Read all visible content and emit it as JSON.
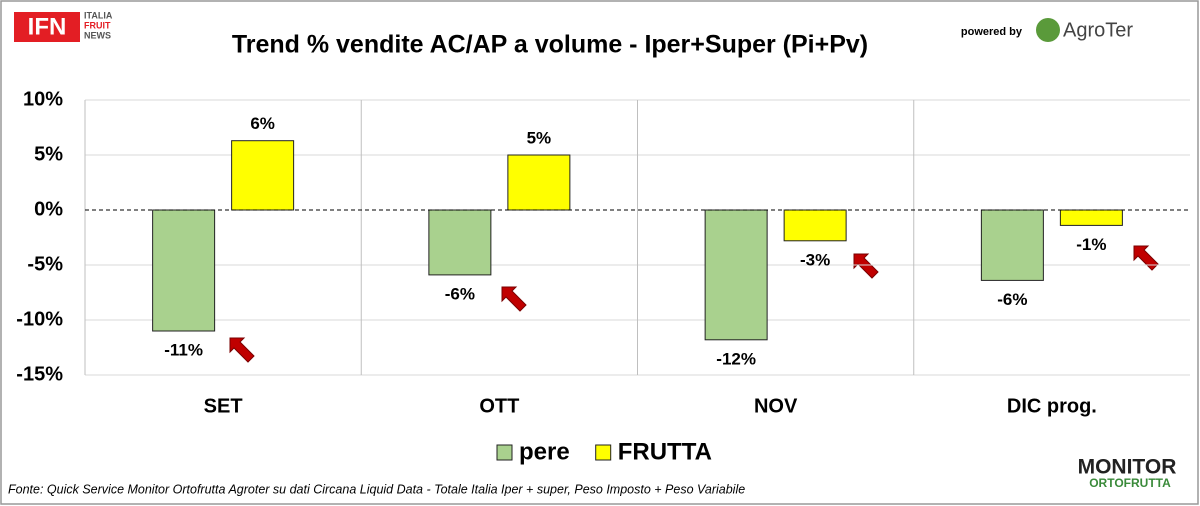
{
  "branding": {
    "ifn": "IFN",
    "ifn_sub": [
      "ITALIA",
      "FRUIT",
      "NEWS"
    ],
    "powered_by": "powered by",
    "agroter": "AgroTer",
    "monitor": "MONITOR",
    "ortofrutta": "ORTOFRUTTA"
  },
  "chart_data": {
    "type": "bar",
    "title": "Trend % vendite AC/AP a volume -  Iper+Super (Pi+Pv)",
    "categories": [
      "SET",
      "OTT",
      "NOV",
      "DIC prog."
    ],
    "series": [
      {
        "name": "pere",
        "color": "#a9d18e",
        "values": [
          -11.0,
          -5.9,
          -11.8,
          -6.4
        ],
        "value_labels": [
          "-11%",
          "-6%",
          "-12%",
          "-6%"
        ]
      },
      {
        "name": "FRUTTA",
        "color": "#ffff00",
        "values": [
          6.3,
          5.0,
          -2.8,
          -1.4
        ],
        "value_labels": [
          "6%",
          "5%",
          "-3%",
          "-1%"
        ]
      }
    ],
    "ylim": [
      -15,
      10
    ],
    "yticks": [
      {
        "value": -15,
        "label": "-15%"
      },
      {
        "value": -10,
        "label": "-10%"
      },
      {
        "value": -5,
        "label": "-5%"
      },
      {
        "value": 0,
        "label": "0%"
      },
      {
        "value": 5,
        "label": "5%"
      },
      {
        "value": 10,
        "label": "10%"
      }
    ],
    "grid": true,
    "legend": "bottom",
    "note": "Fonte: Quick Service Monitor Ortofrutta Agroter su dati Circana Liquid Data - Totale Italia Iper + super, Peso Imposto + Peso Variabile"
  }
}
